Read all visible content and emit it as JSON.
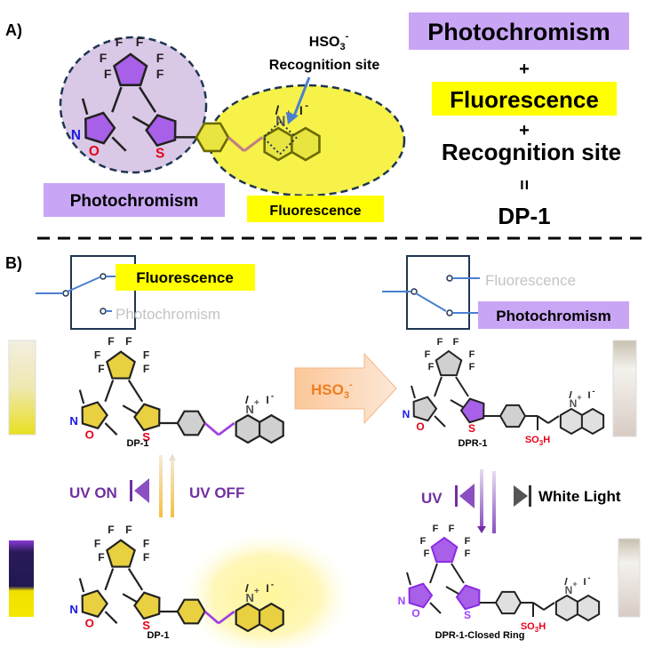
{
  "colors": {
    "purple_box": "#c9a6f5",
    "yellow_box": "#ffff00",
    "purple_text": "#7030a0",
    "orange_text": "#f07f1f",
    "circle_fill": "#d9c9e7",
    "ellipse_fill": "#f6f24a",
    "dash": "#1f3552",
    "grey_text": "#c4c4c4"
  },
  "partA": {
    "label": "A)",
    "hso3": {
      "base": "HSO",
      "sub": "3",
      "sup": "-"
    },
    "recognition_site": "Recognition site",
    "photochromism_tag": "Photochromism",
    "fluorescence_tag": "Fluorescence",
    "equation": {
      "term1": "Photochromism",
      "plus1": "+",
      "term2": "Fluorescence",
      "plus2": "+",
      "term3": "Recognition site",
      "equals": "=",
      "result": "DP-1"
    }
  },
  "partB": {
    "label": "B)",
    "switch_left": {
      "active": "Fluorescence",
      "inactive": "Photochromism"
    },
    "switch_right": {
      "inactive": "Fluorescence",
      "active": "Photochromism"
    },
    "reagent_arrow": {
      "base": "HSO",
      "sub": "3",
      "sup": "-"
    },
    "uv_on": "UV ON",
    "uv_off": "UV OFF",
    "uv": "UV",
    "white_light": "White Light",
    "molecules": {
      "top_left": "DP-1",
      "top_right": "DPR-1",
      "bottom_left": "DP-1",
      "bottom_right": "DPR-1-Closed Ring"
    },
    "so3h": {
      "base": "SO",
      "sub": "3",
      "tail": "H"
    }
  },
  "atoms": {
    "F": "F",
    "N": "N",
    "O": "O",
    "S": "S",
    "Nplus": "N",
    "plus": "+",
    "iodide": "I",
    "minus": "-"
  }
}
